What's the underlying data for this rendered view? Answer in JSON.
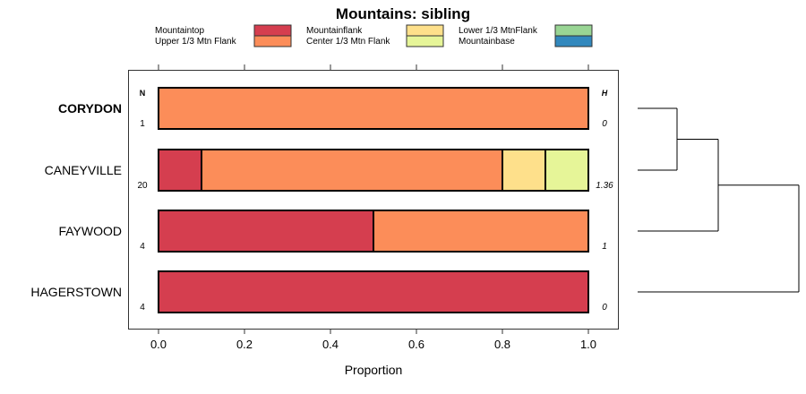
{
  "chart_data": {
    "type": "bar",
    "orientation": "horizontal-stacked",
    "title": "Mountains: sibling",
    "xlabel": "Proportion",
    "xlim": [
      0,
      1
    ],
    "xticks": [
      "0.0",
      "0.2",
      "0.4",
      "0.6",
      "0.8",
      "1.0"
    ],
    "n_header": "N",
    "h_header": "H",
    "legend_position": "top",
    "legend": [
      {
        "name": "Mountaintop",
        "color": "#D53E4F"
      },
      {
        "name": "Upper 1/3 Mtn Flank",
        "color": "#FC8D59"
      },
      {
        "name": "Mountainflank",
        "color": "#FEE08B"
      },
      {
        "name": "Center 1/3 Mtn Flank",
        "color": "#E6F598"
      },
      {
        "name": "Lower 1/3 MtnFlank",
        "color": "#99D594"
      },
      {
        "name": "Mountainbase",
        "color": "#3288BD"
      }
    ],
    "categories": [
      "CORYDON",
      "CANEYVILLE",
      "FAYWOOD",
      "HAGERSTOWN"
    ],
    "bold_category": "CORYDON",
    "n": [
      "1",
      "20",
      "4",
      "4"
    ],
    "h": [
      "0",
      "1.36",
      "1",
      "0"
    ],
    "series": [
      {
        "name": "Mountaintop",
        "values": [
          0,
          0.1,
          0.5,
          1
        ]
      },
      {
        "name": "Upper 1/3 Mtn Flank",
        "values": [
          1,
          0.7,
          0.5,
          0
        ]
      },
      {
        "name": "Mountainflank",
        "values": [
          0,
          0.1,
          0,
          0
        ]
      },
      {
        "name": "Center 1/3 Mtn Flank",
        "values": [
          0,
          0.1,
          0,
          0
        ]
      },
      {
        "name": "Lower 1/3 MtnFlank",
        "values": [
          0,
          0,
          0,
          0
        ]
      },
      {
        "name": "Mountainbase",
        "values": [
          0,
          0,
          0,
          0
        ]
      }
    ],
    "dendrogram": "((CORYDON,CANEYVILLE),FAYWOOD),HAGERSTOWN"
  }
}
